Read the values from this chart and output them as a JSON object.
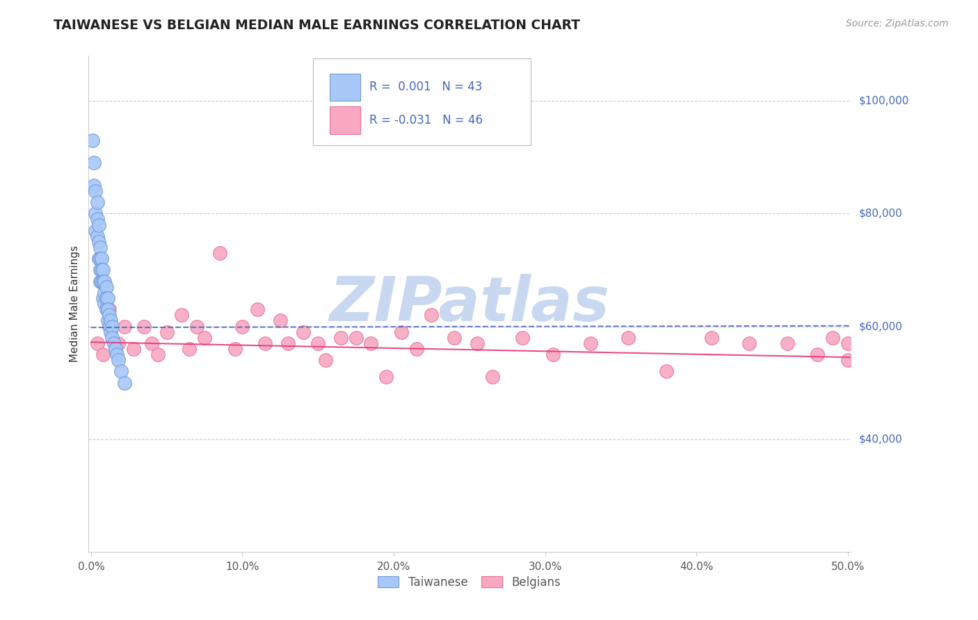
{
  "title": "TAIWANESE VS BELGIAN MEDIAN MALE EARNINGS CORRELATION CHART",
  "source": "Source: ZipAtlas.com",
  "ylabel": "Median Male Earnings",
  "xlim": [
    -0.002,
    0.502
  ],
  "ylim": [
    20000,
    108000
  ],
  "xtick_labels": [
    "0.0%",
    "10.0%",
    "20.0%",
    "30.0%",
    "40.0%",
    "50.0%"
  ],
  "xtick_vals": [
    0.0,
    0.1,
    0.2,
    0.3,
    0.4,
    0.5
  ],
  "ytick_vals": [
    40000,
    60000,
    80000,
    100000
  ],
  "ytick_labels": [
    "$40,000",
    "$60,000",
    "$80,000",
    "$100,000"
  ],
  "grid_color": "#c8c8e8",
  "background_color": "#ffffff",
  "taiwanese_x": [
    0.001,
    0.002,
    0.002,
    0.003,
    0.003,
    0.003,
    0.004,
    0.004,
    0.004,
    0.005,
    0.005,
    0.005,
    0.006,
    0.006,
    0.006,
    0.006,
    0.007,
    0.007,
    0.007,
    0.008,
    0.008,
    0.008,
    0.009,
    0.009,
    0.009,
    0.01,
    0.01,
    0.01,
    0.011,
    0.011,
    0.011,
    0.012,
    0.012,
    0.013,
    0.013,
    0.014,
    0.014,
    0.015,
    0.016,
    0.017,
    0.018,
    0.02,
    0.022
  ],
  "taiwanese_y": [
    93000,
    89000,
    85000,
    84000,
    80000,
    77000,
    82000,
    79000,
    76000,
    78000,
    75000,
    72000,
    74000,
    72000,
    70000,
    68000,
    72000,
    70000,
    68000,
    70000,
    68000,
    65000,
    68000,
    66000,
    64000,
    67000,
    65000,
    63000,
    65000,
    63000,
    61000,
    62000,
    60000,
    61000,
    59000,
    60000,
    58000,
    57000,
    56000,
    55000,
    54000,
    52000,
    50000
  ],
  "belgians_x": [
    0.004,
    0.008,
    0.012,
    0.018,
    0.022,
    0.028,
    0.035,
    0.04,
    0.044,
    0.05,
    0.06,
    0.065,
    0.07,
    0.075,
    0.085,
    0.095,
    0.1,
    0.11,
    0.115,
    0.125,
    0.13,
    0.14,
    0.15,
    0.155,
    0.165,
    0.175,
    0.185,
    0.195,
    0.205,
    0.215,
    0.225,
    0.24,
    0.255,
    0.265,
    0.285,
    0.305,
    0.33,
    0.355,
    0.38,
    0.41,
    0.435,
    0.46,
    0.48,
    0.49,
    0.5,
    0.5
  ],
  "belgians_y": [
    57000,
    55000,
    63000,
    57000,
    60000,
    56000,
    60000,
    57000,
    55000,
    59000,
    62000,
    56000,
    60000,
    58000,
    73000,
    56000,
    60000,
    63000,
    57000,
    61000,
    57000,
    59000,
    57000,
    54000,
    58000,
    58000,
    57000,
    51000,
    59000,
    56000,
    62000,
    58000,
    57000,
    51000,
    58000,
    55000,
    57000,
    58000,
    52000,
    58000,
    57000,
    57000,
    55000,
    58000,
    54000,
    57000
  ],
  "taiwanese_color": "#a8c8f8",
  "belgians_color": "#f8a8c0",
  "taiwanese_edge": "#7098d8",
  "belgians_edge": "#e87098",
  "trend_taiwanese_color": "#4466bb",
  "trend_belgians_color": "#e83878",
  "taiwanese_R": 0.001,
  "taiwanese_N": 43,
  "belgians_R": -0.031,
  "belgians_N": 46,
  "tw_trend_y0": 59800,
  "tw_trend_y1": 60100,
  "be_trend_y0": 57200,
  "be_trend_y1": 54500,
  "watermark_text": "ZIPatlas",
  "watermark_color": "#c8d8f0",
  "legend_box_color": "#ffffff",
  "legend_box_edge": "#cccccc",
  "legend_text_color_R": "#4466bb",
  "legend_text_color_N": "#4466bb",
  "legend_text_color_R2": "#4466bb",
  "legend_text_color_N2": "#4466bb"
}
